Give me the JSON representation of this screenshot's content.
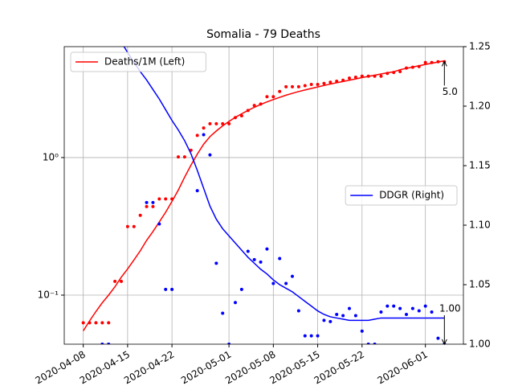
{
  "chart_data": {
    "type": "line",
    "title": "Somalia - 79 Deaths",
    "x": [
      "2020-04-08",
      "2020-04-09",
      "2020-04-10",
      "2020-04-11",
      "2020-04-12",
      "2020-04-13",
      "2020-04-14",
      "2020-04-15",
      "2020-04-16",
      "2020-04-17",
      "2020-04-18",
      "2020-04-19",
      "2020-04-20",
      "2020-04-21",
      "2020-04-22",
      "2020-04-23",
      "2020-04-24",
      "2020-04-25",
      "2020-04-26",
      "2020-04-27",
      "2020-04-28",
      "2020-04-29",
      "2020-04-30",
      "2020-05-01",
      "2020-05-02",
      "2020-05-03",
      "2020-05-04",
      "2020-05-05",
      "2020-05-06",
      "2020-05-07",
      "2020-05-08",
      "2020-05-09",
      "2020-05-10",
      "2020-05-11",
      "2020-05-12",
      "2020-05-13",
      "2020-05-14",
      "2020-05-15",
      "2020-05-16",
      "2020-05-17",
      "2020-05-18",
      "2020-05-19",
      "2020-05-20",
      "2020-05-21",
      "2020-05-22",
      "2020-05-23",
      "2020-05-24",
      "2020-05-25",
      "2020-05-26",
      "2020-05-27",
      "2020-05-28",
      "2020-05-29",
      "2020-05-30",
      "2020-05-31",
      "2020-06-01",
      "2020-06-02",
      "2020-06-03",
      "2020-06-04"
    ],
    "xlim": [
      "2020-04-05",
      "2020-06-07"
    ],
    "xticks": [
      "2020-04-08",
      "2020-04-15",
      "2020-04-22",
      "2020-05-01",
      "2020-05-08",
      "2020-05-15",
      "2020-05-22",
      "2020-06-01"
    ],
    "yscale": "log",
    "ylim": [
      0.044,
      6.4
    ],
    "yticks": [
      {
        "value": 0.1,
        "label": "10⁻¹"
      },
      {
        "value": 1,
        "label": "10⁰"
      }
    ],
    "y2lim": [
      1.0,
      1.25
    ],
    "y2ticks": [
      {
        "value": 1.0,
        "label": "1.00"
      },
      {
        "value": 1.05,
        "label": "1.05"
      },
      {
        "value": 1.1,
        "label": "1.10"
      },
      {
        "value": 1.15,
        "label": "1.15"
      },
      {
        "value": 1.2,
        "label": "1.20"
      },
      {
        "value": 1.25,
        "label": "1.25"
      }
    ],
    "grid": true,
    "series": [
      {
        "name": "Deaths/1M (Left)",
        "color": "#ff0000",
        "axis": "y",
        "legend": "upper left",
        "values": [
          0.063,
          0.063,
          0.063,
          0.063,
          0.063,
          0.126,
          0.126,
          0.315,
          0.315,
          0.38,
          0.44,
          0.44,
          0.5,
          0.5,
          0.5,
          1.01,
          1.01,
          1.13,
          1.45,
          1.64,
          1.76,
          1.76,
          1.76,
          1.76,
          1.95,
          2.01,
          2.2,
          2.39,
          2.45,
          2.77,
          2.77,
          3.02,
          3.27,
          3.27,
          3.27,
          3.33,
          3.4,
          3.4,
          3.46,
          3.53,
          3.59,
          3.65,
          3.78,
          3.84,
          3.9,
          3.9,
          3.9,
          3.9,
          4.09,
          4.15,
          4.22,
          4.47,
          4.53,
          4.59,
          4.91,
          4.91,
          4.97,
          4.97
        ],
        "trend": [
          0.055,
          0.065,
          0.076,
          0.088,
          0.1,
          0.115,
          0.135,
          0.155,
          0.18,
          0.21,
          0.25,
          0.29,
          0.34,
          0.4,
          0.48,
          0.58,
          0.72,
          0.88,
          1.06,
          1.25,
          1.42,
          1.56,
          1.7,
          1.83,
          1.96,
          2.08,
          2.2,
          2.32,
          2.43,
          2.54,
          2.64,
          2.74,
          2.84,
          2.93,
          3.02,
          3.1,
          3.18,
          3.26,
          3.34,
          3.42,
          3.5,
          3.57,
          3.65,
          3.73,
          3.81,
          3.89,
          3.97,
          4.05,
          4.13,
          4.2,
          4.35,
          4.45,
          4.55,
          4.65,
          4.75,
          4.85,
          4.95,
          5.05
        ]
      },
      {
        "name": "DDGR (Right)",
        "color": "#0000ff",
        "axis": "y2",
        "legend": "center right",
        "values": [
          null,
          null,
          null,
          1.0,
          1.0,
          null,
          null,
          null,
          null,
          null,
          1.119,
          1.119,
          1.101,
          1.046,
          1.046,
          null,
          null,
          null,
          1.129,
          1.176,
          1.159,
          1.068,
          1.026,
          1.0,
          1.035,
          1.046,
          1.078,
          1.071,
          1.069,
          1.08,
          1.051,
          1.072,
          1.051,
          1.057,
          1.028,
          1.007,
          1.007,
          1.007,
          1.02,
          1.019,
          1.025,
          1.024,
          1.03,
          1.024,
          1.011,
          1.0,
          1.0,
          1.027,
          1.032,
          1.032,
          1.03,
          1.025,
          1.03,
          1.028,
          1.032,
          1.027,
          1.005,
          1.0
        ],
        "trend": [
          null,
          null,
          null,
          null,
          null,
          1.262,
          1.254,
          1.245,
          1.237,
          1.229,
          1.222,
          1.214,
          1.206,
          1.197,
          1.188,
          1.18,
          1.171,
          1.16,
          1.146,
          1.131,
          1.116,
          1.105,
          1.097,
          1.091,
          1.085,
          1.079,
          1.073,
          1.068,
          1.063,
          1.059,
          1.054,
          1.05,
          1.047,
          1.044,
          1.04,
          1.036,
          1.032,
          1.028,
          1.025,
          1.023,
          1.022,
          1.021,
          1.02,
          1.02,
          1.02,
          1.02,
          1.021,
          1.022,
          1.022,
          1.022,
          1.022,
          1.022,
          1.022,
          1.022,
          1.022,
          1.022,
          1.022,
          1.022
        ]
      }
    ],
    "annotations": [
      {
        "label": "5.0",
        "x": "2020-06-04",
        "y": 5.0,
        "axis": "y"
      },
      {
        "label": "1.00",
        "x": "2020-06-04",
        "y": 1.0,
        "axis": "y2"
      }
    ]
  }
}
